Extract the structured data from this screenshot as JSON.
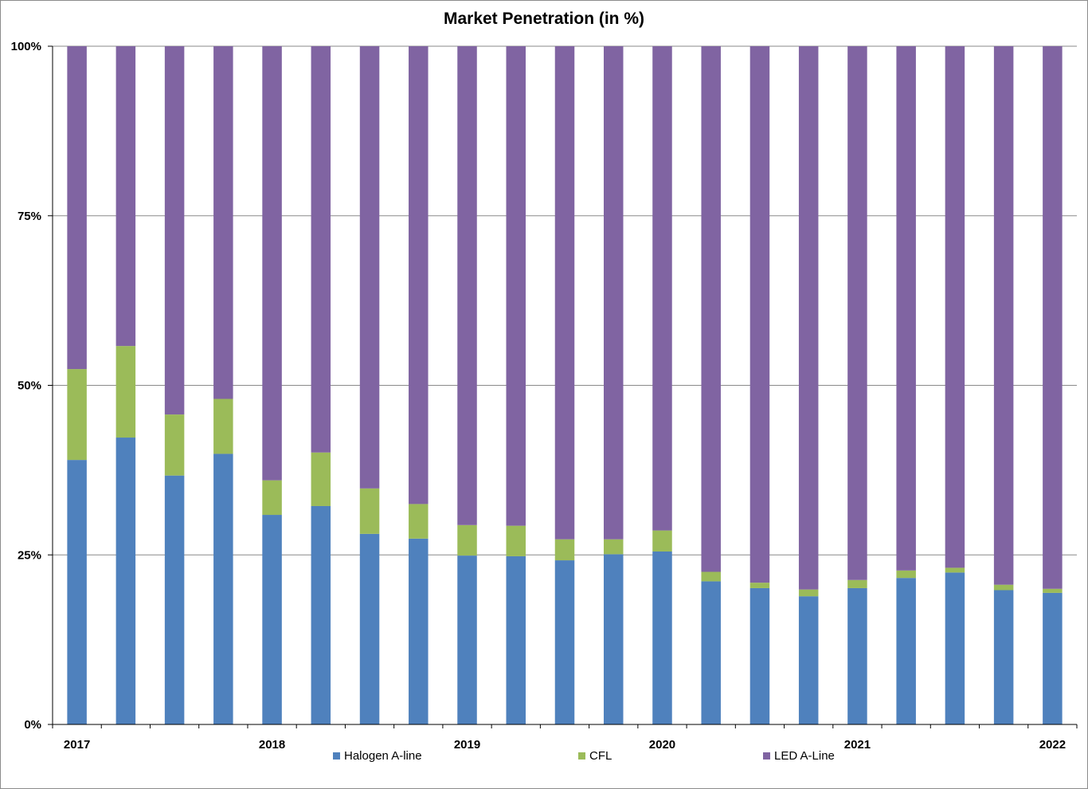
{
  "chart_data": {
    "type": "bar",
    "stacked": true,
    "title": "Market Penetration (in %)",
    "xlabel": "",
    "ylabel": "",
    "ylim": [
      0,
      100
    ],
    "y_ticks": [
      "0%",
      "25%",
      "50%",
      "75%",
      "100%"
    ],
    "x_tick_labels": [
      "2017",
      "2018",
      "2019",
      "2020",
      "2021",
      "2022"
    ],
    "grid": "horizontal",
    "legend_placement": "bottom",
    "series": [
      {
        "name": "Halogen A-line",
        "color": "#4f81bd",
        "values": [
          39,
          42.3,
          36.7,
          39.9,
          30.9,
          32.2,
          28.1,
          27.4,
          24.9,
          24.8,
          24.2,
          25.1,
          25.5,
          21.1,
          20.1,
          18.9,
          20.1,
          21.6,
          22.4,
          19.8,
          19.4
        ]
      },
      {
        "name": "CFL",
        "color": "#9bbb59",
        "values": [
          13.4,
          13.5,
          9,
          8.1,
          5.1,
          7.9,
          6.7,
          5.1,
          4.5,
          4.5,
          3.1,
          2.2,
          3.1,
          1.4,
          0.8,
          1,
          1.2,
          1.1,
          0.7,
          0.8,
          0.6
        ]
      },
      {
        "name": "LED A-Line",
        "color": "#8064a2",
        "values": [
          47.6,
          44.2,
          54.3,
          52,
          64,
          59.9,
          65.2,
          67.5,
          70.6,
          70.7,
          72.7,
          72.7,
          71.4,
          77.5,
          79.1,
          80.1,
          78.7,
          77.3,
          76.9,
          79.4,
          80
        ]
      }
    ]
  }
}
